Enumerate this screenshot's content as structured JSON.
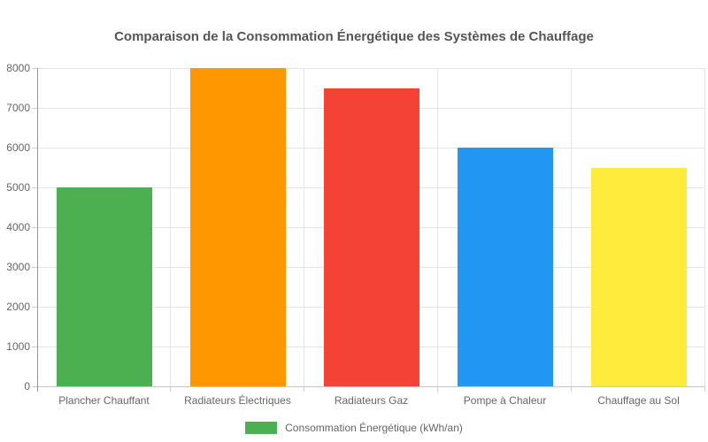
{
  "chart_data": {
    "type": "bar",
    "title": "Comparaison de la Consommation Énergétique des Systèmes de Chauffage",
    "categories": [
      "Plancher Chauffant",
      "Radiateurs Électriques",
      "Radiateurs Gaz",
      "Pompe à Chaleur",
      "Chauffage au Sol"
    ],
    "values": [
      5000,
      8000,
      7500,
      6000,
      5500
    ],
    "bar_colors": [
      "#4CAF50",
      "#FF9800",
      "#F44336",
      "#2196F3",
      "#FFEB3B"
    ],
    "series_name": "Consommation Énergétique (kWh/an)",
    "legend_label": "Consommation Énergétique (kWh/an)",
    "legend_swatch_color": "#4CAF50",
    "legend_position": "bottom",
    "xlabel": "",
    "ylabel": "",
    "ylim": [
      0,
      8000
    ],
    "y_ticks": [
      0,
      1000,
      2000,
      3000,
      4000,
      5000,
      6000,
      7000,
      8000
    ],
    "grid": true
  },
  "colors": {
    "title_text": "#555555",
    "axis_text": "#666666",
    "gridline": "#e5e5e5",
    "axis_line": "#999999",
    "background": "#ffffff"
  }
}
